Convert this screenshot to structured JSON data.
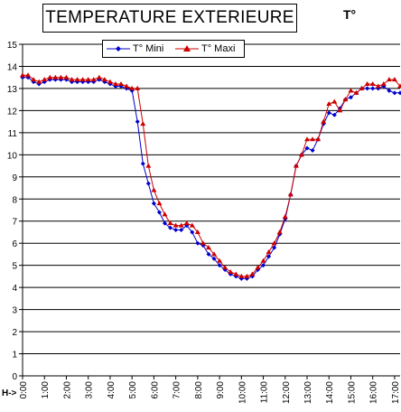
{
  "chart_data": {
    "type": "line",
    "title": "TEMPERATURE EXTERIEURE",
    "ylabel": "T°",
    "xlabel": "H->",
    "ylim": [
      0,
      15
    ],
    "yticks": [
      0,
      1,
      2,
      3,
      4,
      5,
      6,
      7,
      8,
      9,
      10,
      11,
      12,
      13,
      14,
      15
    ],
    "xlim": [
      0,
      17.25
    ],
    "xticks": [
      {
        "v": 0,
        "label": "0:00"
      },
      {
        "v": 1,
        "label": "1:00"
      },
      {
        "v": 2,
        "label": "2:00"
      },
      {
        "v": 3,
        "label": "3:00"
      },
      {
        "v": 4,
        "label": "4:00"
      },
      {
        "v": 5,
        "label": "5:00"
      },
      {
        "v": 6,
        "label": "6:00"
      },
      {
        "v": 7,
        "label": "7:00"
      },
      {
        "v": 8,
        "label": "8:00"
      },
      {
        "v": 9,
        "label": "9:00"
      },
      {
        "v": 10,
        "label": "10:00"
      },
      {
        "v": 11,
        "label": "11:00"
      },
      {
        "v": 12,
        "label": "12:00"
      },
      {
        "v": 13,
        "label": "13:00"
      },
      {
        "v": 14,
        "label": "14:00"
      },
      {
        "v": 15,
        "label": "15:00"
      },
      {
        "v": 16,
        "label": "16:00"
      },
      {
        "v": 17,
        "label": "17:00"
      }
    ],
    "grid": "horizontal",
    "legend": "top",
    "series": [
      {
        "name": "T° Mini",
        "color": "#0000cc",
        "marker": "diamond",
        "x": [
          0,
          0.25,
          0.5,
          0.75,
          1,
          1.25,
          1.5,
          1.75,
          2,
          2.25,
          2.5,
          2.75,
          3,
          3.25,
          3.5,
          3.75,
          4,
          4.25,
          4.5,
          4.75,
          5,
          5.25,
          5.5,
          5.75,
          6,
          6.25,
          6.5,
          6.75,
          7,
          7.25,
          7.5,
          7.75,
          8,
          8.25,
          8.5,
          8.75,
          9,
          9.25,
          9.5,
          9.75,
          10,
          10.25,
          10.5,
          10.75,
          11,
          11.25,
          11.5,
          11.75,
          12,
          12.25,
          12.5,
          12.75,
          13,
          13.25,
          13.5,
          13.75,
          14,
          14.25,
          14.5,
          14.75,
          15,
          15.25,
          15.5,
          15.75,
          16,
          16.25,
          16.5,
          16.75,
          17,
          17.25
        ],
        "values": [
          13.5,
          13.5,
          13.3,
          13.2,
          13.3,
          13.4,
          13.4,
          13.4,
          13.4,
          13.3,
          13.3,
          13.3,
          13.3,
          13.3,
          13.4,
          13.3,
          13.2,
          13.1,
          13.1,
          13.0,
          12.9,
          11.5,
          9.6,
          8.7,
          7.8,
          7.4,
          6.9,
          6.7,
          6.6,
          6.6,
          6.8,
          6.5,
          6.0,
          5.9,
          5.5,
          5.3,
          5.0,
          4.8,
          4.6,
          4.5,
          4.4,
          4.4,
          4.5,
          4.8,
          5.0,
          5.4,
          5.8,
          6.4,
          7.1,
          8.2,
          9.5,
          10.0,
          10.3,
          10.2,
          10.7,
          11.4,
          11.9,
          11.8,
          12.1,
          12.5,
          12.6,
          12.8,
          13.0,
          13.0,
          13.0,
          13.0,
          13.1,
          12.9,
          12.8,
          12.8
        ]
      },
      {
        "name": "T° Maxi",
        "color": "#cc0000",
        "marker": "triangle",
        "x": [
          0,
          0.25,
          0.5,
          0.75,
          1,
          1.25,
          1.5,
          1.75,
          2,
          2.25,
          2.5,
          2.75,
          3,
          3.25,
          3.5,
          3.75,
          4,
          4.25,
          4.5,
          4.75,
          5,
          5.25,
          5.5,
          5.75,
          6,
          6.25,
          6.5,
          6.75,
          7,
          7.25,
          7.5,
          7.75,
          8,
          8.25,
          8.5,
          8.75,
          9,
          9.25,
          9.5,
          9.75,
          10,
          10.25,
          10.5,
          10.75,
          11,
          11.25,
          11.5,
          11.75,
          12,
          12.25,
          12.5,
          12.75,
          13,
          13.25,
          13.5,
          13.75,
          14,
          14.25,
          14.5,
          14.75,
          15,
          15.25,
          15.5,
          15.75,
          16,
          16.25,
          16.5,
          16.75,
          17,
          17.25
        ],
        "values": [
          13.6,
          13.6,
          13.4,
          13.3,
          13.4,
          13.5,
          13.5,
          13.5,
          13.5,
          13.4,
          13.4,
          13.4,
          13.4,
          13.4,
          13.5,
          13.4,
          13.3,
          13.2,
          13.2,
          13.1,
          13.0,
          13.0,
          11.4,
          9.5,
          8.4,
          7.8,
          7.3,
          6.9,
          6.8,
          6.8,
          6.9,
          6.8,
          6.5,
          6.0,
          5.8,
          5.5,
          5.2,
          4.9,
          4.7,
          4.6,
          4.5,
          4.5,
          4.6,
          4.9,
          5.2,
          5.6,
          6.0,
          6.5,
          7.2,
          8.2,
          9.5,
          10.0,
          10.7,
          10.7,
          10.7,
          11.5,
          12.3,
          12.4,
          12.0,
          12.5,
          12.9,
          12.8,
          13.0,
          13.2,
          13.2,
          13.1,
          13.2,
          13.4,
          13.4,
          13.1
        ]
      }
    ]
  }
}
